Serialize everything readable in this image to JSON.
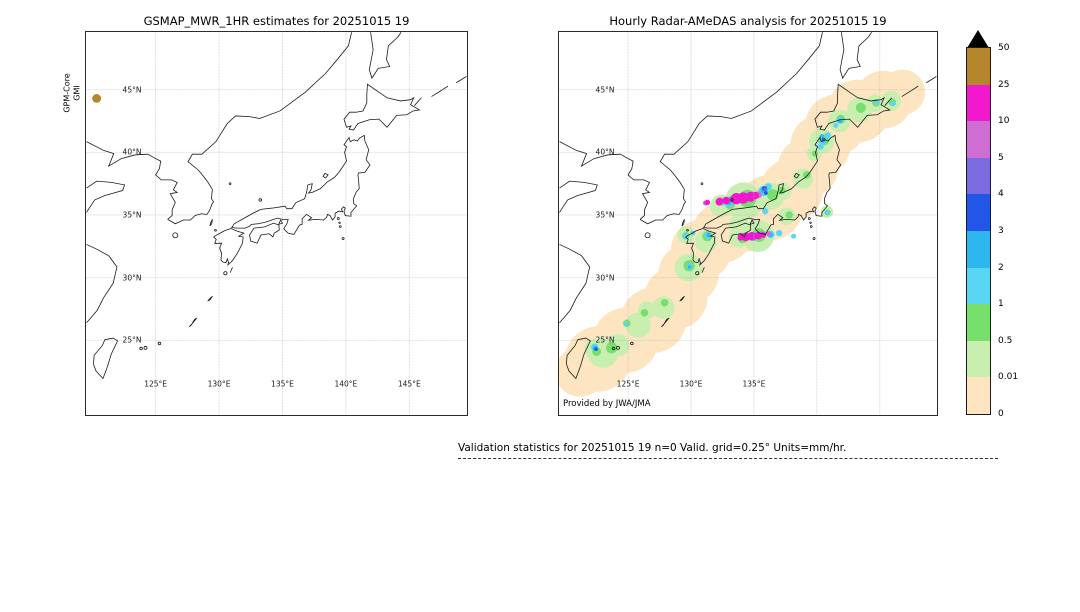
{
  "chart_data": {
    "type": "heatmap",
    "description": "Two precipitation maps over Japan (satellite estimate vs radar-gauge analysis) sharing one discrete rain-rate colorbar",
    "units": "mm/hr",
    "region": {
      "lon_min": 119.51,
      "lon_max": 149.55,
      "lat_min": 19.04,
      "lat_max": 49.6
    },
    "lon_gridlines": [
      125,
      130,
      135,
      140,
      145
    ],
    "lat_gridlines": [
      25,
      30,
      35,
      40,
      45
    ],
    "panels": [
      {
        "title": "GSMAP_MWR_1HR estimates for 20251015 19",
        "ylabel_lines": [
          "GPM-Core",
          "GMI"
        ],
        "lat_ticks": [
          {
            "lat": 45,
            "label": "45°N"
          },
          {
            "lat": 40,
            "label": "40°N"
          },
          {
            "lat": 35,
            "label": "35°N"
          },
          {
            "lat": 30,
            "label": "30°N"
          },
          {
            "lat": 25,
            "label": "25°N"
          }
        ],
        "lon_ticks": [
          {
            "lon": 125,
            "label": "125°E"
          },
          {
            "lon": 130,
            "label": "130°E"
          },
          {
            "lon": 135,
            "label": "135°E"
          },
          {
            "lon": 140,
            "label": "140°E"
          },
          {
            "lon": 145,
            "label": "145°E"
          }
        ],
        "precip_points_format": [
          "lon_deg",
          "lat_deg",
          "radius_deg",
          "rain_mm_per_hr"
        ],
        "precip_points": [
          [
            120.35,
            44.3,
            0.35,
            30
          ]
        ]
      },
      {
        "title": "Hourly Radar-AMeDAS analysis for 20251015 19",
        "credit": "Provided by JWA/JMA",
        "lat_ticks": [
          {
            "lat": 45,
            "label": "45°N"
          },
          {
            "lat": 40,
            "label": "40°N"
          },
          {
            "lat": 35,
            "label": "35°N"
          },
          {
            "lat": 30,
            "label": "30°N"
          },
          {
            "lat": 25,
            "label": "25°N"
          }
        ],
        "lon_ticks": [
          {
            "lon": 125,
            "label": "125°E"
          },
          {
            "lon": 130,
            "label": "130°E"
          },
          {
            "lon": 135,
            "label": "135°E"
          }
        ],
        "precip_points_format": [
          "lon_deg",
          "lat_deg",
          "radius_deg",
          "rain_mm_per_hr"
        ],
        "precip_points": [
          [
            121.2,
            22.5,
            2.0,
            0.005
          ],
          [
            122.6,
            23.5,
            2.6,
            0.005
          ],
          [
            124.8,
            25.0,
            2.6,
            0.005
          ],
          [
            127.0,
            26.6,
            2.6,
            0.005
          ],
          [
            128.8,
            28.4,
            2.5,
            0.005
          ],
          [
            129.8,
            30.3,
            2.4,
            0.005
          ],
          [
            130.8,
            32.2,
            2.4,
            0.005
          ],
          [
            132.5,
            33.6,
            2.4,
            0.005
          ],
          [
            134.5,
            34.6,
            2.5,
            0.005
          ],
          [
            136.3,
            35.6,
            2.6,
            0.005
          ],
          [
            138.0,
            37.0,
            2.5,
            0.005
          ],
          [
            139.3,
            38.8,
            2.4,
            0.005
          ],
          [
            140.3,
            40.6,
            2.4,
            0.005
          ],
          [
            141.5,
            42.2,
            2.4,
            0.005
          ],
          [
            143.3,
            43.3,
            2.5,
            0.005
          ],
          [
            145.3,
            44.2,
            2.3,
            0.005
          ],
          [
            146.8,
            44.8,
            1.8,
            0.005
          ],
          [
            123.0,
            24.0,
            1.2,
            0.2
          ],
          [
            124.2,
            24.6,
            0.9,
            0.2
          ],
          [
            125.8,
            26.2,
            1.0,
            0.2
          ],
          [
            127.8,
            27.6,
            0.9,
            0.2
          ],
          [
            129.8,
            30.8,
            1.1,
            0.2
          ],
          [
            131.2,
            32.9,
            0.9,
            0.2
          ],
          [
            133.8,
            34.2,
            0.8,
            0.2
          ],
          [
            134.2,
            36.1,
            1.5,
            0.2
          ],
          [
            132.4,
            35.7,
            0.9,
            0.2
          ],
          [
            136.3,
            36.5,
            1.1,
            0.2
          ],
          [
            135.3,
            33.35,
            1.3,
            0.2
          ],
          [
            133.8,
            33.2,
            0.8,
            0.2
          ],
          [
            137.6,
            34.9,
            0.7,
            0.2
          ],
          [
            138.9,
            37.9,
            0.8,
            0.2
          ],
          [
            140.4,
            40.9,
            1.0,
            0.2
          ],
          [
            141.8,
            42.5,
            0.9,
            0.2
          ],
          [
            143.4,
            43.4,
            1.0,
            0.2
          ],
          [
            145.9,
            44.1,
            0.8,
            0.2
          ],
          [
            140.8,
            35.25,
            0.5,
            0.2
          ],
          [
            129.6,
            33.4,
            0.7,
            0.2
          ],
          [
            126.5,
            27.4,
            0.7,
            0.2
          ],
          [
            122.3,
            24.3,
            0.8,
            0.2
          ],
          [
            137.3,
            36.9,
            0.7,
            0.2
          ],
          [
            139.8,
            39.9,
            0.6,
            0.2
          ],
          [
            144.6,
            43.9,
            0.7,
            0.2
          ],
          [
            123.7,
            24.4,
            0.45,
            0.7
          ],
          [
            122.5,
            24.1,
            0.35,
            0.7
          ],
          [
            124.9,
            26.35,
            0.3,
            0.7
          ],
          [
            129.85,
            30.95,
            0.45,
            0.7
          ],
          [
            131.3,
            33.3,
            0.4,
            0.7
          ],
          [
            134.5,
            36.3,
            0.7,
            0.7
          ],
          [
            133.1,
            35.85,
            0.4,
            0.7
          ],
          [
            136.5,
            36.6,
            0.45,
            0.7
          ],
          [
            135.4,
            33.4,
            0.55,
            0.7
          ],
          [
            134.1,
            33.15,
            0.4,
            0.7
          ],
          [
            137.8,
            35.0,
            0.3,
            0.7
          ],
          [
            139.2,
            38.2,
            0.3,
            0.7
          ],
          [
            140.55,
            41.0,
            0.45,
            0.7
          ],
          [
            141.9,
            42.65,
            0.35,
            0.7
          ],
          [
            143.5,
            43.55,
            0.4,
            0.7
          ],
          [
            146.0,
            44.0,
            0.3,
            0.7
          ],
          [
            140.85,
            35.2,
            0.25,
            0.7
          ],
          [
            137.2,
            36.95,
            0.3,
            0.7
          ],
          [
            126.3,
            27.2,
            0.3,
            0.7
          ],
          [
            139.85,
            39.9,
            0.25,
            0.7
          ],
          [
            144.7,
            43.95,
            0.3,
            0.7
          ],
          [
            127.9,
            28.0,
            0.3,
            0.7
          ],
          [
            129.6,
            33.35,
            0.3,
            0.7
          ],
          [
            122.35,
            24.45,
            0.3,
            1.5
          ],
          [
            124.85,
            26.3,
            0.18,
            1.5
          ],
          [
            129.9,
            30.9,
            0.25,
            1.5
          ],
          [
            131.35,
            33.35,
            0.28,
            1.5
          ],
          [
            133.05,
            35.9,
            0.3,
            1.5
          ],
          [
            135.75,
            36.9,
            0.4,
            1.5
          ],
          [
            136.15,
            37.25,
            0.28,
            1.5
          ],
          [
            135.9,
            35.3,
            0.25,
            1.5
          ],
          [
            135.05,
            33.3,
            0.38,
            1.5
          ],
          [
            136.35,
            33.45,
            0.3,
            1.5
          ],
          [
            137.0,
            33.55,
            0.25,
            1.5
          ],
          [
            138.15,
            33.3,
            0.2,
            1.5
          ],
          [
            140.85,
            35.2,
            0.2,
            1.5
          ],
          [
            140.45,
            40.85,
            0.3,
            1.5
          ],
          [
            140.85,
            41.35,
            0.25,
            1.5
          ],
          [
            141.85,
            42.55,
            0.28,
            1.5
          ],
          [
            141.5,
            42.15,
            0.2,
            1.5
          ],
          [
            146.05,
            43.9,
            0.22,
            1.5
          ],
          [
            129.55,
            33.3,
            0.25,
            1.5
          ],
          [
            130.15,
            33.55,
            0.2,
            1.5
          ],
          [
            134.5,
            36.4,
            0.35,
            1.5
          ],
          [
            132.5,
            36.0,
            0.25,
            1.5
          ],
          [
            144.75,
            44.0,
            0.2,
            1.5
          ],
          [
            140.3,
            40.45,
            0.25,
            1.5
          ],
          [
            135.8,
            37.0,
            0.28,
            2.5
          ],
          [
            135.0,
            33.28,
            0.26,
            2.5
          ],
          [
            134.4,
            36.35,
            0.25,
            2.5
          ],
          [
            133.0,
            35.95,
            0.18,
            2.5
          ],
          [
            122.4,
            24.35,
            0.2,
            2.5
          ],
          [
            140.5,
            40.95,
            0.2,
            2.5
          ],
          [
            141.85,
            42.5,
            0.18,
            2.5
          ],
          [
            136.3,
            33.42,
            0.2,
            2.5
          ],
          [
            131.4,
            33.4,
            0.18,
            2.5
          ],
          [
            129.9,
            30.85,
            0.15,
            2.5
          ],
          [
            140.4,
            41.3,
            0.15,
            2.5
          ],
          [
            135.85,
            37.1,
            0.2,
            3.5
          ],
          [
            135.95,
            36.75,
            0.15,
            3.5
          ],
          [
            135.1,
            33.25,
            0.18,
            3.5
          ],
          [
            134.35,
            33.1,
            0.14,
            3.5
          ],
          [
            122.45,
            24.3,
            0.14,
            3.5
          ],
          [
            140.55,
            41.05,
            0.13,
            3.5
          ],
          [
            134.55,
            36.45,
            0.16,
            3.5
          ],
          [
            135.9,
            37.05,
            0.12,
            4.5
          ],
          [
            135.05,
            33.3,
            0.12,
            4.5
          ],
          [
            134.5,
            36.4,
            0.1,
            4.5
          ],
          [
            132.3,
            36.1,
            0.3,
            7
          ],
          [
            133.2,
            36.25,
            0.25,
            7
          ],
          [
            135.35,
            36.6,
            0.28,
            7
          ],
          [
            134.0,
            33.3,
            0.28,
            7
          ],
          [
            135.65,
            33.45,
            0.25,
            7
          ],
          [
            131.15,
            35.95,
            0.2,
            7
          ],
          [
            134.3,
            36.3,
            0.3,
            7
          ],
          [
            136.15,
            33.5,
            0.2,
            7
          ],
          [
            133.6,
            36.3,
            0.45,
            15
          ],
          [
            134.15,
            36.35,
            0.45,
            15
          ],
          [
            134.75,
            36.45,
            0.4,
            15
          ],
          [
            135.1,
            36.55,
            0.3,
            15
          ],
          [
            132.25,
            36.05,
            0.3,
            15
          ],
          [
            131.3,
            36.0,
            0.22,
            15
          ],
          [
            132.8,
            36.15,
            0.3,
            15
          ],
          [
            134.35,
            33.25,
            0.35,
            15
          ],
          [
            134.85,
            33.3,
            0.35,
            15
          ],
          [
            135.35,
            33.35,
            0.3,
            15
          ],
          [
            133.95,
            33.2,
            0.25,
            15
          ],
          [
            135.75,
            33.4,
            0.22,
            15
          ]
        ]
      }
    ],
    "colorbar": {
      "units": "mm/hr",
      "levels": [
        0,
        0.01,
        0.5,
        1,
        2,
        3,
        4,
        5,
        10,
        25,
        50
      ],
      "labels": [
        "0",
        "0.01",
        "0.5",
        "1",
        "2",
        "3",
        "4",
        "5",
        "10",
        "25",
        "50"
      ],
      "colors": [
        "#fde5c2",
        "#c8efb0",
        "#77df6b",
        "#59d7f2",
        "#2eb6ee",
        "#2156e8",
        "#7b6ce0",
        "#cf6ed2",
        "#f218ce",
        "#b5862b"
      ],
      "over_color": "#000000"
    },
    "caption": "Validation statistics for 20251015 19 n=0 Valid. grid=0.25° Units=mm/hr."
  }
}
